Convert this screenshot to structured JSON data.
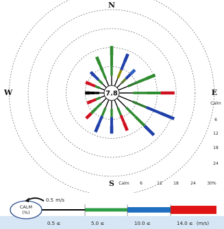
{
  "chart_data": {
    "type": "wind-rose",
    "directions": [
      "N",
      "E",
      "S",
      "W"
    ],
    "center_value": "7.8",
    "ring_labels": [
      "Calm",
      "6",
      "12",
      "18",
      "24",
      "30"
    ],
    "ring_unit": "%",
    "petals": [
      {
        "dir": 0,
        "pct": 12.5,
        "seg": [
          "#000000",
          "#2e8b2e",
          "#2e8b2e",
          "#2e8b2e"
        ]
      },
      {
        "dir": 22.5,
        "pct": 11.0,
        "seg": [
          "#000000",
          "#8a8a00",
          "#1f3fa8",
          "#1f3fa8"
        ]
      },
      {
        "dir": 45,
        "pct": 8.0,
        "seg": [
          "#000000",
          "#5a7a2a",
          "#1f3fa8",
          "#3060c0"
        ]
      },
      {
        "dir": 67.5,
        "pct": 12.5,
        "seg": [
          "#000000",
          "#2e7a2e",
          "#2e8b2e",
          "#2e8b2e"
        ]
      },
      {
        "dir": 90,
        "pct": 17.5,
        "seg": [
          "#000000",
          "#2e8b2e",
          "#2e8b2e",
          "#d01020"
        ]
      },
      {
        "dir": 112.5,
        "pct": 19.0,
        "seg": [
          "#000000",
          "#2e7a2e",
          "#1f3fa8",
          "#1f3fa8"
        ]
      },
      {
        "dir": 135,
        "pct": 16.5,
        "seg": [
          "#000000",
          "#2e8b2e",
          "#2e8b2e",
          "#1f3fa8"
        ]
      },
      {
        "dir": 157.5,
        "pct": 10.5,
        "seg": [
          "#000000",
          "#2e8b2e",
          "#d01020",
          "#d01020"
        ]
      },
      {
        "dir": 180,
        "pct": 10.5,
        "seg": [
          "#000000",
          "#2e8b2e",
          "#1f3fa8",
          "#1f3fa8"
        ]
      },
      {
        "dir": 202.5,
        "pct": 11.0,
        "seg": [
          "#000000",
          "#2e8b2e",
          "#1f3fa8",
          "#1f3fa8"
        ]
      },
      {
        "dir": 225,
        "pct": 9.0,
        "seg": [
          "#000000",
          "#2e8b2e",
          "#2e8b2e",
          "#d01020"
        ]
      },
      {
        "dir": 247.5,
        "pct": 6.0,
        "seg": [
          "#000000",
          "#2e8b2e",
          "#d01020",
          "#d01020"
        ]
      },
      {
        "dir": 270,
        "pct": 6.0,
        "seg": [
          "#000000",
          "#000000",
          "#000000",
          "#000000"
        ]
      },
      {
        "dir": 292.5,
        "pct": 6.5,
        "seg": [
          "#000000",
          "#2e8b2e",
          "#d01020",
          "#d01020"
        ]
      },
      {
        "dir": 315,
        "pct": 7.0,
        "seg": [
          "#000000",
          "#2e8b2e",
          "#1f3fa8",
          "#1f3fa8"
        ]
      },
      {
        "dir": 337.5,
        "pct": 10.0,
        "seg": [
          "#000000",
          "#2e8b2e",
          "#2e8b2e",
          "#2e8b2e"
        ]
      }
    ]
  },
  "legend": {
    "calm_label_1": "CALM",
    "calm_label_2": "(%)",
    "calm_speed": "0.5",
    "calm_unit": "m/s",
    "bins": [
      {
        "label": "0.5 ≤",
        "color": "#000000"
      },
      {
        "label": "5.0 ≤",
        "color": "#2e9e46"
      },
      {
        "label": "10.0 ≤",
        "color": "#1f6fc0"
      },
      {
        "label": "14.0 ≤",
        "color": "#e01414"
      }
    ],
    "unit_label": "(m/s)"
  }
}
